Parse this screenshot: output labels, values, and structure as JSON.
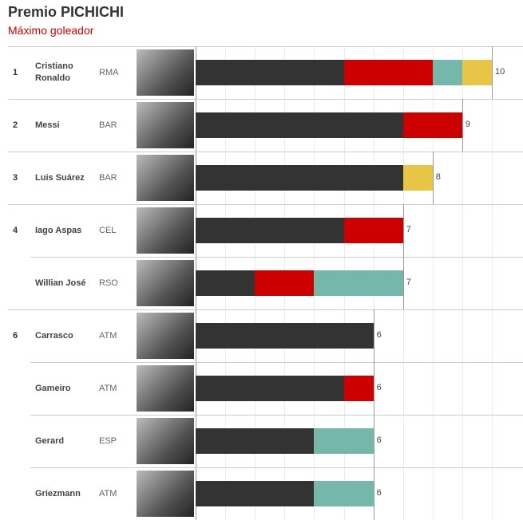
{
  "chart_data": {
    "type": "stacked-bar-table",
    "title": "Premio PICHICHI",
    "subtitle": "Máximo goleador",
    "xlim": [
      0,
      10
    ],
    "xticks": [
      0,
      1,
      2,
      3,
      4,
      5,
      6,
      7,
      8,
      9,
      10
    ],
    "grid": true,
    "rows": [
      {
        "rank": "1",
        "name": "Cristiano Ronaldo",
        "team": "RMA",
        "total": 10
      },
      {
        "rank": "2",
        "name": "Messi",
        "team": "BAR",
        "total": 9
      },
      {
        "rank": "3",
        "name": "Luis Suárez",
        "team": "BAR",
        "total": 8
      },
      {
        "rank": "4",
        "name": "Iago Aspas",
        "team": "CEL",
        "total": 7
      },
      {
        "rank": null,
        "name": "Willian José",
        "team": "RSO",
        "total": 7
      },
      {
        "rank": "6",
        "name": "Carrasco",
        "team": "ATM",
        "total": 6
      },
      {
        "rank": null,
        "name": "Gameiro",
        "team": "ATM",
        "total": 6
      },
      {
        "rank": null,
        "name": "Gerard",
        "team": "ESP",
        "total": 6
      },
      {
        "rank": null,
        "name": "Griezmann",
        "team": "ATM",
        "total": 6
      }
    ],
    "series": [
      {
        "color": "#333333",
        "values": [
          5,
          7,
          7,
          5,
          2,
          6,
          5,
          4,
          4
        ]
      },
      {
        "color": "#cc0000",
        "values": [
          3,
          2,
          0,
          2,
          2,
          0,
          1,
          0,
          0
        ]
      },
      {
        "color": "#76b7ac",
        "values": [
          1,
          0,
          0,
          0,
          3,
          0,
          0,
          2,
          2
        ]
      },
      {
        "color": "#e8c547",
        "values": [
          1,
          0,
          1,
          0,
          0,
          0,
          0,
          0,
          0
        ]
      }
    ]
  }
}
